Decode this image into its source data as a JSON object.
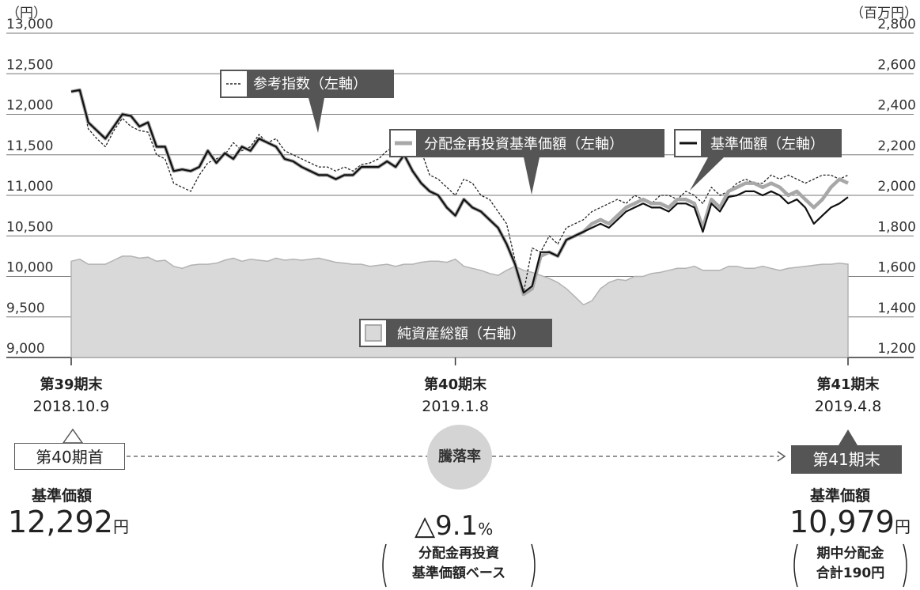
{
  "header": {
    "left_unit": "（円）",
    "right_unit": "（百万円）"
  },
  "chart_data": {
    "type": "line",
    "y_left": {
      "ticks": [
        "13,000",
        "12,500",
        "12,000",
        "11,500",
        "11,000",
        "10,500",
        "10,000",
        "9,500",
        "9,000"
      ],
      "range": [
        9000,
        13000
      ]
    },
    "y_right": {
      "ticks": [
        "2,800",
        "2,600",
        "2,400",
        "2,200",
        "2,000",
        "1,800",
        "1,600",
        "1,400",
        "1,200"
      ],
      "range": [
        1200,
        2800
      ]
    },
    "x_points": 92,
    "x_ticks": [
      {
        "index": 0,
        "line1": "第39期末",
        "line2": "2018.10.9"
      },
      {
        "index": 45,
        "line1": "第40期末",
        "line2": "2019.1.8"
      },
      {
        "index": 91,
        "line1": "第41期末",
        "line2": "2019.4.8"
      }
    ],
    "grid": true,
    "series": [
      {
        "name": "純資産総額（右軸）",
        "axis": "right",
        "kind": "area",
        "color": "#d9d9d9",
        "values": [
          1675,
          1685,
          1660,
          1660,
          1660,
          1680,
          1700,
          1700,
          1690,
          1695,
          1675,
          1680,
          1650,
          1640,
          1655,
          1660,
          1660,
          1665,
          1680,
          1690,
          1675,
          1685,
          1680,
          1675,
          1690,
          1680,
          1685,
          1680,
          1685,
          1690,
          1680,
          1670,
          1665,
          1660,
          1660,
          1650,
          1655,
          1660,
          1650,
          1660,
          1660,
          1670,
          1675,
          1675,
          1670,
          1685,
          1650,
          1640,
          1630,
          1615,
          1605,
          1630,
          1650,
          1630,
          1620,
          1605,
          1590,
          1570,
          1540,
          1500,
          1460,
          1480,
          1540,
          1570,
          1585,
          1580,
          1600,
          1600,
          1615,
          1620,
          1630,
          1640,
          1640,
          1650,
          1630,
          1630,
          1630,
          1650,
          1650,
          1640,
          1640,
          1650,
          1640,
          1630,
          1640,
          1645,
          1650,
          1655,
          1660,
          1660,
          1665,
          1660
        ]
      },
      {
        "name": "参考指数（左軸）",
        "axis": "left",
        "kind": "dashed",
        "color": "#222222",
        "values": [
          12280,
          12300,
          11820,
          11700,
          11600,
          11800,
          11950,
          11850,
          11800,
          11780,
          11500,
          11450,
          11150,
          11100,
          11050,
          11250,
          11400,
          11450,
          11500,
          11650,
          11550,
          11600,
          11750,
          11650,
          11700,
          11550,
          11500,
          11450,
          11400,
          11350,
          11350,
          11300,
          11350,
          11300,
          11380,
          11400,
          11450,
          11550,
          11600,
          11700,
          11750,
          11550,
          11250,
          11200,
          11100,
          11000,
          11200,
          11150,
          11000,
          10950,
          10800,
          10650,
          10200,
          9800,
          10350,
          10300,
          10500,
          10400,
          10600,
          10650,
          10700,
          10800,
          10850,
          10900,
          10950,
          10900,
          11000,
          10950,
          10900,
          11000,
          11000,
          10950,
          11050,
          11000,
          10900,
          11100,
          11000,
          11050,
          11150,
          11200,
          11150,
          11150,
          11250,
          11200,
          11250,
          11200,
          11150,
          11200,
          11250,
          11250,
          11200,
          11250
        ]
      },
      {
        "name": "分配金再投資基準価額（左軸）",
        "axis": "left",
        "kind": "thick",
        "color": "#a8a8a8",
        "values": [
          12280,
          12300,
          11900,
          11800,
          11700,
          11850,
          12000,
          11980,
          11850,
          11900,
          11600,
          11600,
          11300,
          11320,
          11300,
          11350,
          11550,
          11400,
          11520,
          11450,
          11600,
          11550,
          11700,
          11650,
          11600,
          11450,
          11420,
          11350,
          11300,
          11250,
          11250,
          11200,
          11250,
          11250,
          11350,
          11350,
          11350,
          11420,
          11350,
          11500,
          11300,
          11150,
          11050,
          11000,
          10850,
          10750,
          10950,
          10850,
          10800,
          10700,
          10600,
          10400,
          10150,
          9780,
          9850,
          10250,
          10300,
          10250,
          10450,
          10500,
          10550,
          10650,
          10700,
          10650,
          10750,
          10850,
          10900,
          10950,
          10900,
          10900,
          10850,
          10950,
          10950,
          10900,
          10600,
          10950,
          10850,
          11050,
          11100,
          11150,
          11150,
          11100,
          11150,
          11100,
          11000,
          11050,
          10950,
          10850,
          10950,
          11100,
          11200,
          11150
        ]
      },
      {
        "name": "基準価額（左軸）",
        "axis": "left",
        "kind": "solid",
        "color": "#111111",
        "values": [
          12280,
          12300,
          11900,
          11800,
          11700,
          11850,
          12000,
          11980,
          11850,
          11900,
          11600,
          11600,
          11300,
          11320,
          11300,
          11350,
          11550,
          11400,
          11520,
          11450,
          11600,
          11550,
          11700,
          11650,
          11600,
          11450,
          11420,
          11350,
          11300,
          11250,
          11250,
          11200,
          11250,
          11250,
          11350,
          11350,
          11350,
          11420,
          11350,
          11500,
          11300,
          11150,
          11050,
          11000,
          10850,
          10750,
          10950,
          10850,
          10800,
          10700,
          10600,
          10400,
          10150,
          9800,
          9880,
          10300,
          10300,
          10250,
          10450,
          10500,
          10550,
          10600,
          10650,
          10600,
          10700,
          10800,
          10850,
          10900,
          10850,
          10850,
          10800,
          10900,
          10900,
          10850,
          10550,
          10900,
          10800,
          10980,
          11000,
          11050,
          11050,
          11000,
          11050,
          11000,
          10900,
          10950,
          10850,
          10650,
          10750,
          10850,
          10900,
          10979
        ]
      }
    ],
    "callouts": {
      "ref_index": "参考指数（左軸）",
      "reinvest": "分配金再投資基準価額（左軸）",
      "nav": "基準価額（左軸）",
      "net_assets": "純資産総額（右軸）"
    }
  },
  "summary": {
    "start_tag": "第40期首",
    "end_tag": "第41期末",
    "start_label": "基準価額",
    "start_value": "12,292",
    "start_unit": "円",
    "rate_label": "騰落率",
    "rate_value": "△9.1",
    "rate_unit": "%",
    "rate_note_1": "分配金再投資",
    "rate_note_2": "基準価額ベース",
    "end_label": "基準価額",
    "end_value": "10,979",
    "end_unit": "円",
    "end_note_1": "期中分配金",
    "end_note_2": "合計190円"
  }
}
